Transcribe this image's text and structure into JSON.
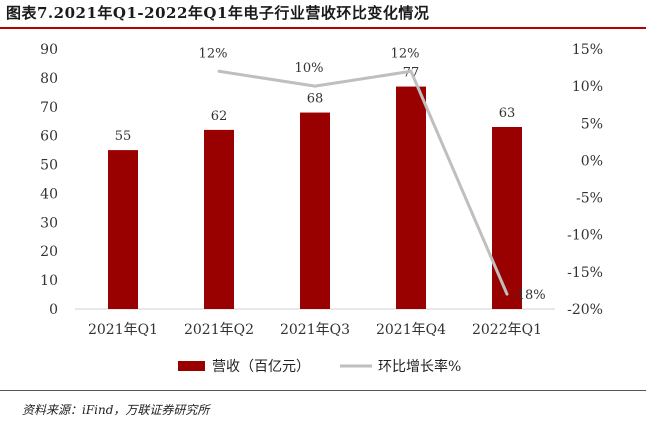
{
  "header": {
    "title": "图表7.2021年Q1-2022年Q1年电子行业营收环比变化情况"
  },
  "footer": {
    "source": "资料来源：iFind，万联证券研究所"
  },
  "colors": {
    "bar": "#990000",
    "line": "#bfbfbf",
    "rule": "#b30000"
  },
  "chart_data": {
    "type": "bar",
    "categories": [
      "2021年Q1",
      "2021年Q2",
      "2021年Q3",
      "2021年Q4",
      "2022年Q1"
    ],
    "series": [
      {
        "name": "营收（百亿元）",
        "type": "bar",
        "axis": "left",
        "values": [
          55,
          62,
          68,
          77,
          63
        ],
        "labels": [
          "55",
          "62",
          "68",
          "77",
          "63"
        ]
      },
      {
        "name": "环比增长率%",
        "type": "line",
        "axis": "right",
        "values": [
          null,
          12,
          10,
          12,
          -18
        ],
        "labels": [
          "",
          "12%",
          "10%",
          "12%",
          "-18%"
        ]
      }
    ],
    "left_axis": {
      "ylim": [
        0,
        90
      ],
      "ticks": [
        "0",
        "10",
        "20",
        "30",
        "40",
        "50",
        "60",
        "70",
        "80",
        "90"
      ]
    },
    "right_axis": {
      "ylim": [
        -20,
        15
      ],
      "ticks": [
        "-20%",
        "-15%",
        "-10%",
        "-5%",
        "0%",
        "5%",
        "10%",
        "15%"
      ]
    },
    "legend_position": "bottom",
    "grid": false
  }
}
